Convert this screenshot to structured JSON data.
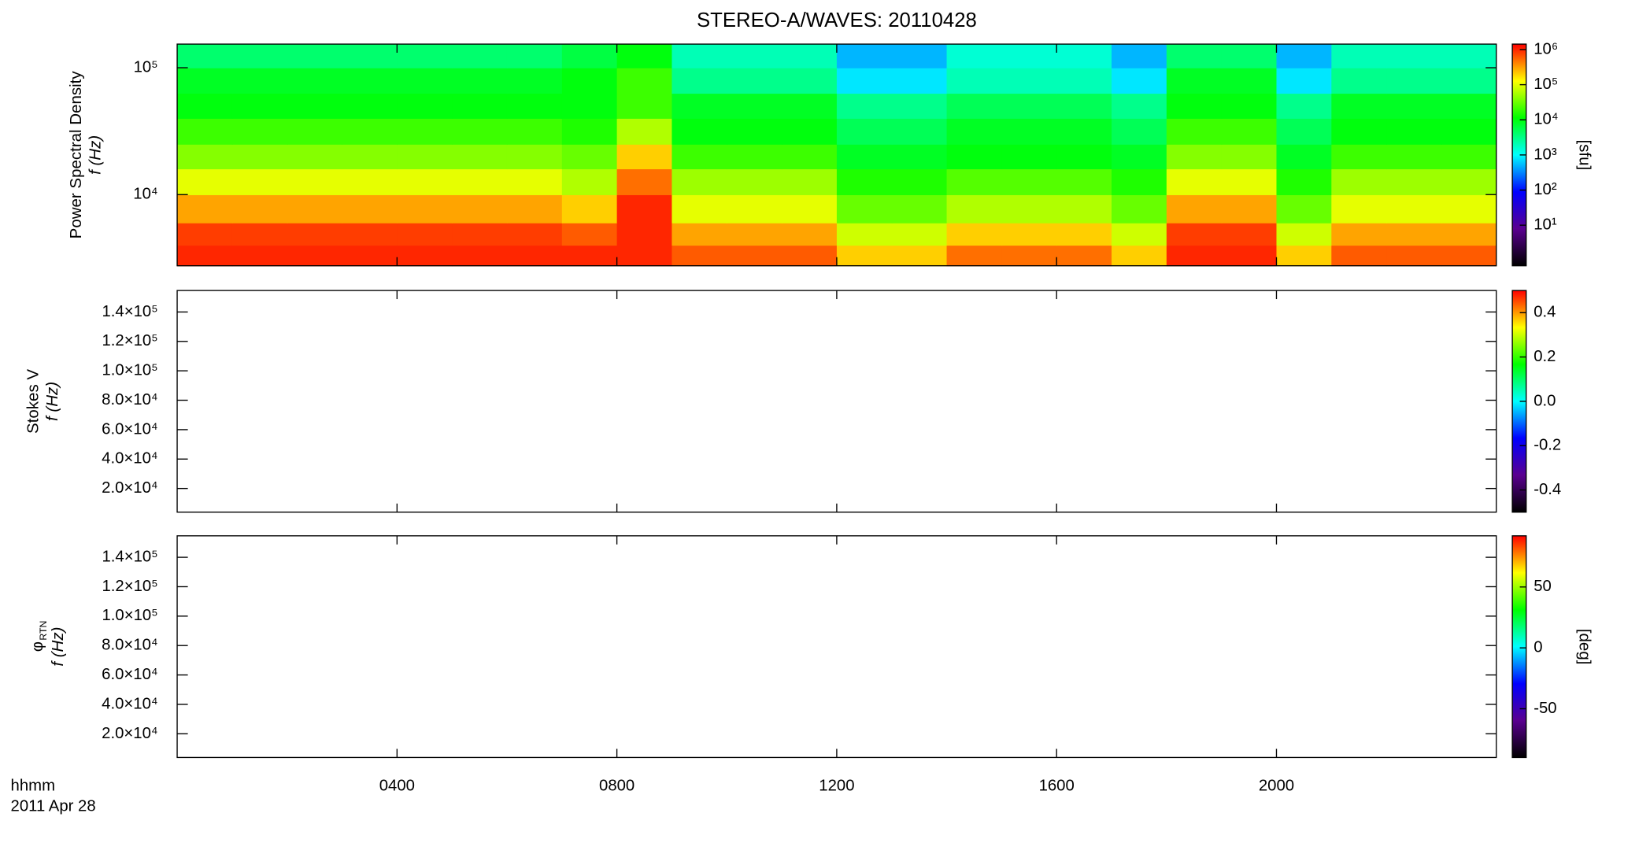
{
  "chart_data": [
    {
      "type": "heatmap",
      "title": "STEREO-A/WAVES: 20110428",
      "ylabel": "Power Spectral Density",
      "ylabel2": "f (Hz)",
      "xlim": [
        0,
        24
      ],
      "xticks": [
        4,
        8,
        12,
        16,
        20
      ],
      "show_xticklabels": false,
      "ylog": true,
      "ylim": [
        2750,
        153500
      ],
      "yticks": [
        {
          "value": 10000,
          "label": "10⁴"
        },
        {
          "value": 100000,
          "label": "10⁵"
        }
      ],
      "time_bins": [
        0,
        1,
        2,
        3,
        4,
        5,
        6,
        7,
        8,
        9,
        10,
        11,
        12,
        13,
        14,
        15,
        16,
        17,
        18,
        19,
        20,
        21,
        22,
        23,
        24
      ],
      "freq_bins": [
        2750,
        4000,
        6000,
        10000,
        16000,
        25000,
        40000,
        63000,
        100000,
        153500
      ],
      "z": [
        [
          1000000,
          1000000,
          1000000,
          1000000,
          1000000,
          1000000,
          1000000,
          1000000,
          1000000,
          600000,
          600000,
          600000,
          200000,
          200000,
          500000,
          500000,
          500000,
          200000,
          1000000,
          1000000,
          200000,
          600000,
          600000,
          600000
        ],
        [
          800000,
          800000,
          800000,
          800000,
          800000,
          800000,
          800000,
          600000,
          1000000,
          300000,
          300000,
          300000,
          80000,
          80000,
          200000,
          200000,
          200000,
          80000,
          800000,
          800000,
          80000,
          300000,
          300000,
          300000
        ],
        [
          300000,
          300000,
          300000,
          300000,
          300000,
          300000,
          300000,
          200000,
          1000000,
          100000,
          100000,
          100000,
          30000,
          30000,
          60000,
          60000,
          60000,
          30000,
          300000,
          300000,
          30000,
          100000,
          100000,
          100000
        ],
        [
          100000,
          100000,
          100000,
          100000,
          100000,
          100000,
          100000,
          60000,
          500000,
          50000,
          50000,
          50000,
          15000,
          15000,
          25000,
          25000,
          25000,
          15000,
          100000,
          100000,
          15000,
          50000,
          50000,
          50000
        ],
        [
          40000,
          40000,
          40000,
          40000,
          40000,
          40000,
          40000,
          30000,
          200000,
          20000,
          20000,
          20000,
          8000,
          8000,
          10000,
          10000,
          10000,
          8000,
          40000,
          40000,
          8000,
          20000,
          20000,
          20000
        ],
        [
          20000,
          20000,
          20000,
          20000,
          20000,
          20000,
          20000,
          15000,
          60000,
          10000,
          10000,
          10000,
          5000,
          5000,
          8000,
          8000,
          8000,
          5000,
          20000,
          20000,
          5000,
          10000,
          10000,
          10000
        ],
        [
          10000,
          10000,
          10000,
          10000,
          10000,
          10000,
          10000,
          10000,
          20000,
          8000,
          8000,
          8000,
          3000,
          3000,
          5000,
          5000,
          5000,
          3000,
          10000,
          10000,
          3000,
          8000,
          8000,
          8000
        ],
        [
          8000,
          8000,
          8000,
          8000,
          8000,
          8000,
          8000,
          10000,
          20000,
          3000,
          3000,
          3000,
          800,
          800,
          2000,
          2000,
          2000,
          800,
          8000,
          8000,
          800,
          3000,
          3000,
          3000
        ],
        [
          4000,
          4000,
          4000,
          4000,
          4000,
          4000,
          4000,
          6000,
          10000,
          2000,
          2000,
          2000,
          500,
          500,
          1500,
          1500,
          1500,
          500,
          4000,
          4000,
          500,
          2000,
          2000,
          2000
        ]
      ],
      "colorbar": {
        "log": true,
        "lim": [
          0.7,
          1430000
        ],
        "label": "[sfu]",
        "ticks": [
          {
            "value": 10,
            "label": "10¹"
          },
          {
            "value": 100,
            "label": "10²"
          },
          {
            "value": 1000,
            "label": "10³"
          },
          {
            "value": 10000,
            "label": "10⁴"
          },
          {
            "value": 100000,
            "label": "10⁵"
          },
          {
            "value": 1000000,
            "label": "10⁶"
          }
        ],
        "colors": [
          "#000000",
          "#5a0090",
          "#0000ff",
          "#00ffff",
          "#00ff00",
          "#ffff00",
          "#ff0000"
        ]
      }
    },
    {
      "type": "heatmap",
      "ylabel": "Stokes V",
      "ylabel2": "f (Hz)",
      "xlim": [
        0,
        24
      ],
      "xticks": [
        4,
        8,
        12,
        16,
        20
      ],
      "show_xticklabels": false,
      "ylog": false,
      "ylim": [
        3900,
        154600
      ],
      "yticks": [
        {
          "value": 20000,
          "label": "2.0×10⁴"
        },
        {
          "value": 40000,
          "label": "4.0×10⁴"
        },
        {
          "value": 60000,
          "label": "6.0×10⁴"
        },
        {
          "value": 80000,
          "label": "8.0×10⁴"
        },
        {
          "value": 100000,
          "label": "1.0×10⁵"
        },
        {
          "value": 120000,
          "label": "1.2×10⁵"
        },
        {
          "value": 140000,
          "label": "1.4×10⁵"
        }
      ],
      "colorbar": {
        "log": false,
        "lim": [
          -0.5,
          0.5
        ],
        "ticks": [
          {
            "value": -0.4,
            "label": "-0.4"
          },
          {
            "value": -0.2,
            "label": "-0.2"
          },
          {
            "value": 0,
            "label": "0.0"
          },
          0.2,
          0.4
        ],
        "colors": [
          "#000000",
          "#5a0090",
          "#0000ff",
          "#00ffff",
          "#00ff00",
          "#ffff00",
          "#ff0000"
        ]
      }
    },
    {
      "type": "heatmap",
      "ylabel": "φ",
      "ylabel_sub": "RTN",
      "ylabel2": "f (Hz)",
      "xlabel": "hhmm",
      "xsublabel": "2011 Apr 28",
      "xlim": [
        0,
        24
      ],
      "show_xticklabels": true,
      "xticks": [
        {
          "value": 4,
          "label": "0400"
        },
        {
          "value": 8,
          "label": "0800"
        },
        {
          "value": 12,
          "label": "1200"
        },
        {
          "value": 16,
          "label": "1600"
        },
        {
          "value": 20,
          "label": "2000"
        }
      ],
      "ylog": false,
      "ylim": [
        3900,
        154600
      ],
      "yticks": [
        {
          "value": 20000,
          "label": "2.0×10⁴"
        },
        {
          "value": 40000,
          "label": "4.0×10⁴"
        },
        {
          "value": 60000,
          "label": "6.0×10⁴"
        },
        {
          "value": 80000,
          "label": "8.0×10⁴"
        },
        {
          "value": 100000,
          "label": "1.0×10⁵"
        },
        {
          "value": 120000,
          "label": "1.2×10⁵"
        },
        {
          "value": 140000,
          "label": "1.4×10⁵"
        }
      ],
      "colorbar": {
        "log": false,
        "lim": [
          -90,
          92
        ],
        "label": "[deg]",
        "ticks": [
          -50,
          0,
          50
        ],
        "colors": [
          "#000000",
          "#5a0090",
          "#0000ff",
          "#00ffff",
          "#00ff00",
          "#ffff00",
          "#ff0000"
        ]
      }
    }
  ]
}
